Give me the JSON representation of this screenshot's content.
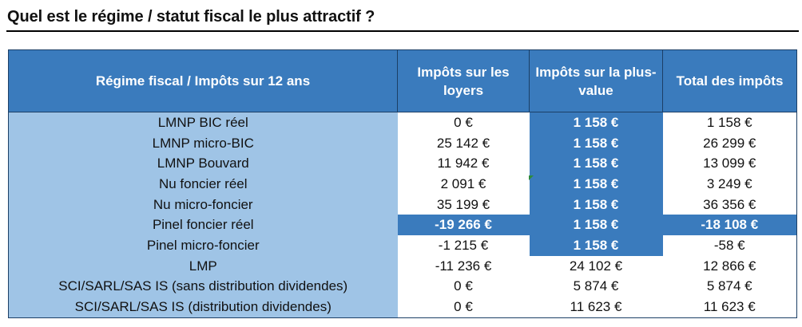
{
  "title": "Quel est le régime / statut fiscal le plus attractif ?",
  "table": {
    "headers": [
      "Régime fiscal / Impôts sur 12 ans",
      "Impôts sur les loyers",
      "Impôts sur la plus-value",
      "Total des impôts"
    ],
    "rows": [
      {
        "regime": "LMNP BIC réel",
        "loyers": "0 €",
        "plus_value": "1 158 €",
        "total": "1 158 €"
      },
      {
        "regime": "LMNP micro-BIC",
        "loyers": "25 142 €",
        "plus_value": "1 158 €",
        "total": "26 299 €"
      },
      {
        "regime": "LMNP Bouvard",
        "loyers": "11 942 €",
        "plus_value": "1 158 €",
        "total": "13 099 €"
      },
      {
        "regime": "Nu foncier réel",
        "loyers": "2 091 €",
        "plus_value": "1 158 €",
        "total": "3 249 €"
      },
      {
        "regime": "Nu micro-foncier",
        "loyers": "35 199 €",
        "plus_value": "1 158 €",
        "total": "36 356 €"
      },
      {
        "regime": "Pinel foncier réel",
        "loyers": "-19 266 €",
        "plus_value": "1 158 €",
        "total": "-18 108 €"
      },
      {
        "regime": "Pinel micro-foncier",
        "loyers": "-1 215 €",
        "plus_value": "1 158 €",
        "total": "-58 €"
      },
      {
        "regime": "LMP",
        "loyers": "-11 236 €",
        "plus_value": "24 102 €",
        "total": "12 866 €"
      },
      {
        "regime": "SCI/SARL/SAS IS (sans distribution dividendes)",
        "loyers": "0 €",
        "plus_value": "5 874 €",
        "total": "5 874 €"
      },
      {
        "regime": "SCI/SARL/SAS IS (distribution dividendes)",
        "loyers": "0 €",
        "plus_value": "11 623 €",
        "total": "11 623 €"
      }
    ]
  },
  "colors": {
    "header_bg": "#3a7bbd",
    "label_bg": "#9fc4e6",
    "highlight_bg": "#3a7bbd",
    "highlight_text": "#ffffff"
  }
}
